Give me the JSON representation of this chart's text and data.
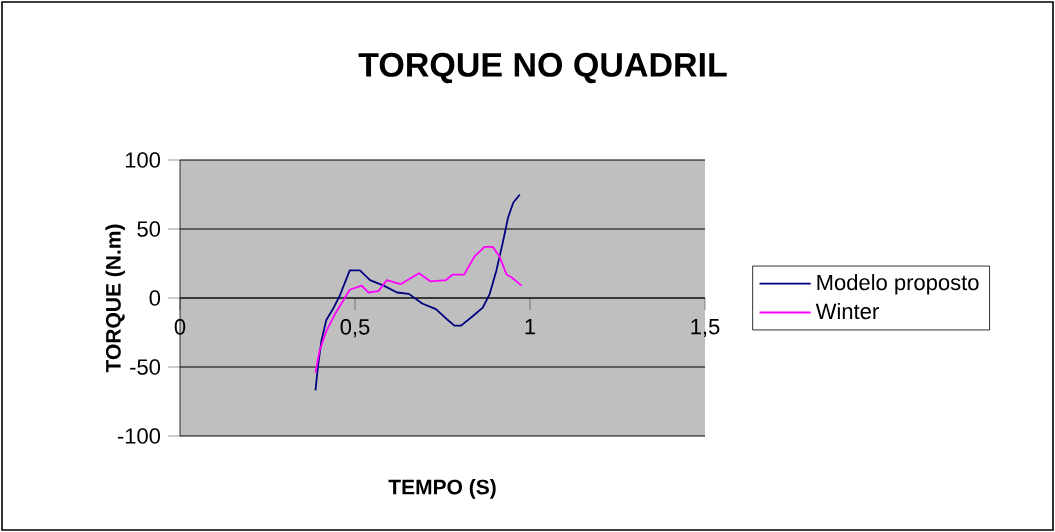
{
  "chart_data": {
    "type": "line",
    "title": "TORQUE NO QUADRIL",
    "xlabel": "TEMPO (S)",
    "ylabel": "TORQUE (N.m)",
    "xlim": [
      0,
      1.5
    ],
    "ylim": [
      -100,
      100
    ],
    "xticks": [
      {
        "value": 0,
        "label": "0"
      },
      {
        "value": 0.5,
        "label": "0,5"
      },
      {
        "value": 1,
        "label": "1"
      },
      {
        "value": 1.5,
        "label": "1,5"
      }
    ],
    "yticks": [
      -100,
      -50,
      0,
      50,
      100
    ],
    "grid": "y",
    "legend": "right",
    "marker": "none",
    "line_style": "solid",
    "series": [
      {
        "name": "Modelo proposto",
        "color": "#000080",
        "x": [
          0.387,
          0.394,
          0.404,
          0.418,
          0.437,
          0.457,
          0.485,
          0.514,
          0.543,
          0.582,
          0.62,
          0.654,
          0.692,
          0.731,
          0.761,
          0.784,
          0.803,
          0.837,
          0.865,
          0.885,
          0.904,
          0.923,
          0.937,
          0.952,
          0.971
        ],
        "values": [
          -67,
          -50,
          -31,
          -16,
          -8,
          2,
          20,
          20,
          13,
          9,
          4,
          3,
          -4,
          -8,
          -15,
          -20,
          -20,
          -13,
          -7,
          3,
          20,
          41,
          58,
          69,
          75
        ]
      },
      {
        "name": "Winter",
        "color": "#ff00ff",
        "x": [
          0.387,
          0.399,
          0.418,
          0.442,
          0.466,
          0.485,
          0.519,
          0.538,
          0.567,
          0.591,
          0.63,
          0.683,
          0.716,
          0.76,
          0.779,
          0.812,
          0.841,
          0.87,
          0.894,
          0.913,
          0.933,
          0.947,
          0.976
        ],
        "values": [
          -54,
          -38,
          -24,
          -12,
          -2,
          6,
          9,
          4,
          5,
          13,
          10,
          18,
          12,
          13,
          17,
          17,
          30,
          37,
          37,
          30,
          17,
          15,
          9
        ]
      }
    ]
  }
}
